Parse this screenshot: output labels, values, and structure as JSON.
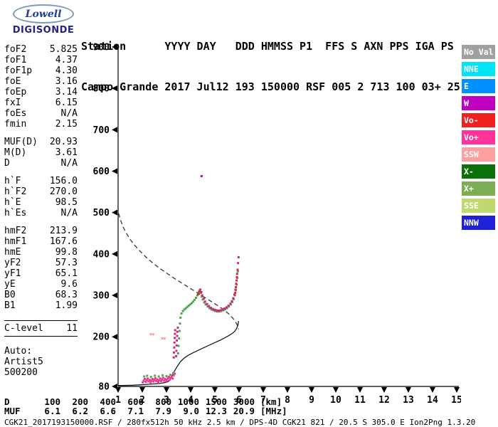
{
  "logo": {
    "brand": "Lowell",
    "product": "DIGISONDE"
  },
  "header": {
    "labels_line": "Station      YYYY DAY   DDD HMMSS P1  FFS S AXN PPS IGA PS",
    "values_line": "Campo Grande 2017 Jul12 193 150000 RSF 005 2 713 100 03+ 25"
  },
  "params": [
    {
      "name": "foF2",
      "value": "5.825"
    },
    {
      "name": "foF1",
      "value": "4.37"
    },
    {
      "name": "foF1p",
      "value": "4.30"
    },
    {
      "name": "foE",
      "value": "3.16"
    },
    {
      "name": "foEp",
      "value": "3.14"
    },
    {
      "name": "fxI",
      "value": "6.15"
    },
    {
      "name": "foEs",
      "value": "N/A"
    },
    {
      "name": "fmin",
      "value": "2.15"
    },
    {
      "gap": true
    },
    {
      "name": "MUF(D)",
      "value": "20.93"
    },
    {
      "name": "M(D)",
      "value": "3.61"
    },
    {
      "name": "D",
      "value": "N/A"
    },
    {
      "gap": true
    },
    {
      "name": "h`F",
      "value": "156.0"
    },
    {
      "name": "h`F2",
      "value": "270.0"
    },
    {
      "name": "h`E",
      "value": "98.5"
    },
    {
      "name": "h`Es",
      "value": "N/A"
    },
    {
      "gap": true
    },
    {
      "name": "hmF2",
      "value": "213.9"
    },
    {
      "name": "hmF1",
      "value": "167.6"
    },
    {
      "name": "hmE",
      "value": "99.8"
    },
    {
      "name": "yF2",
      "value": "57.3"
    },
    {
      "name": "yF1",
      "value": "65.1"
    },
    {
      "name": "yE",
      "value": "9.6"
    },
    {
      "name": "B0",
      "value": "68.3"
    },
    {
      "name": "B1",
      "value": "1.99"
    },
    {
      "gap": true
    },
    {
      "rule": true
    },
    {
      "name": "C-level",
      "value": "11"
    },
    {
      "rule": true
    },
    {
      "gap": true
    },
    {
      "text": "Auto:"
    },
    {
      "text": "Artist5"
    },
    {
      "text": "500200"
    }
  ],
  "legend": {
    "items": [
      {
        "label": "No Val",
        "color": "#A0A0A0"
      },
      {
        "label": "NNE",
        "color": "#00E5F5"
      },
      {
        "label": "E",
        "color": "#0090FF"
      },
      {
        "label": "W",
        "color": "#C000C0"
      },
      {
        "label": "Vo-",
        "color": "#EE2020"
      },
      {
        "label": "Vo+",
        "color": "#FF3399"
      },
      {
        "label": "SSW",
        "color": "#FFA0A0"
      },
      {
        "label": "X-",
        "color": "#0A700A"
      },
      {
        "label": "X+",
        "color": "#7DAE54"
      },
      {
        "label": "SSE",
        "color": "#BFD96E"
      },
      {
        "label": "NNW",
        "color": "#2020D8"
      }
    ]
  },
  "chart_data": {
    "type": "scatter",
    "title": "Digisonde ionogram, Campo Grande 2017 Jul12 193 150000",
    "x_unit": "MHz",
    "y_unit": "km",
    "x_range": [
      1,
      15
    ],
    "y_range": [
      80,
      900
    ],
    "x_ticks": [
      1,
      2,
      3,
      4,
      5,
      6,
      7,
      8,
      9,
      10,
      11,
      12,
      13,
      14,
      15
    ],
    "y_ticks": [
      80,
      200,
      300,
      400,
      500,
      600,
      700,
      800,
      900
    ],
    "grid": false,
    "legend_position": "right",
    "series": [
      {
        "name": "E-region-echoes-pink",
        "color": "#E8388F",
        "points": [
          [
            2.02,
            90
          ],
          [
            2.06,
            94
          ],
          [
            2.1,
            98
          ],
          [
            2.14,
            91
          ],
          [
            2.18,
            95
          ],
          [
            2.22,
            99
          ],
          [
            2.26,
            92
          ],
          [
            2.3,
            96
          ],
          [
            2.34,
            90
          ],
          [
            2.38,
            94
          ],
          [
            2.42,
            98
          ],
          [
            2.46,
            92
          ],
          [
            2.5,
            96
          ],
          [
            2.54,
            100
          ],
          [
            2.58,
            93
          ],
          [
            2.62,
            97
          ],
          [
            2.66,
            91
          ],
          [
            2.7,
            95
          ],
          [
            2.74,
            99
          ],
          [
            2.78,
            93
          ],
          [
            2.82,
            97
          ],
          [
            2.86,
            101
          ],
          [
            2.9,
            94
          ],
          [
            2.94,
            98
          ],
          [
            2.98,
            92
          ],
          [
            3.02,
            96
          ],
          [
            3.06,
            100
          ],
          [
            3.1,
            103
          ],
          [
            3.14,
            97
          ],
          [
            3.18,
            101
          ],
          [
            3.22,
            105
          ],
          [
            3.26,
            99
          ],
          [
            3.3,
            107
          ],
          [
            3.34,
            111
          ]
        ]
      },
      {
        "name": "E-region-echoes-green",
        "color": "#59A84B",
        "points": [
          [
            2.08,
            104
          ],
          [
            2.2,
            106
          ],
          [
            2.36,
            103
          ],
          [
            2.52,
            106
          ],
          [
            2.68,
            104
          ],
          [
            2.84,
            107
          ],
          [
            3.0,
            105
          ],
          [
            3.16,
            108
          ],
          [
            3.28,
            112
          ]
        ]
      },
      {
        "name": "F1-spread-magenta",
        "color": "#D02878",
        "points": [
          [
            3.3,
            150
          ],
          [
            3.31,
            162
          ],
          [
            3.32,
            174
          ],
          [
            3.33,
            186
          ],
          [
            3.34,
            197
          ],
          [
            3.35,
            207
          ],
          [
            3.36,
            216
          ],
          [
            3.4,
            153
          ],
          [
            3.41,
            166
          ],
          [
            3.42,
            179
          ],
          [
            3.43,
            191
          ],
          [
            3.44,
            202
          ],
          [
            3.45,
            212
          ],
          [
            3.47,
            222
          ]
        ]
      },
      {
        "name": "F-trace-green",
        "color": "#4FA24F",
        "points": [
          [
            3.48,
            160
          ],
          [
            3.5,
            178
          ],
          [
            3.52,
            196
          ],
          [
            3.54,
            214
          ],
          [
            3.56,
            232
          ],
          [
            3.58,
            246
          ],
          [
            3.62,
            256
          ],
          [
            3.68,
            262
          ],
          [
            3.74,
            266
          ],
          [
            3.8,
            269
          ],
          [
            3.86,
            272
          ],
          [
            3.92,
            275
          ],
          [
            3.98,
            278
          ],
          [
            4.04,
            281
          ],
          [
            4.1,
            285
          ],
          [
            4.16,
            289
          ],
          [
            4.22,
            294
          ],
          [
            4.28,
            300
          ],
          [
            4.33,
            306
          ],
          [
            4.37,
            312
          ],
          [
            4.42,
            306
          ],
          [
            4.46,
            297
          ],
          [
            4.5,
            290
          ],
          [
            4.56,
            283
          ],
          [
            4.62,
            278
          ],
          [
            4.7,
            273
          ],
          [
            4.78,
            269
          ],
          [
            4.86,
            266
          ],
          [
            4.94,
            264
          ],
          [
            5.02,
            262
          ],
          [
            5.1,
            261
          ],
          [
            5.18,
            261
          ],
          [
            5.26,
            262
          ],
          [
            5.34,
            264
          ],
          [
            5.42,
            266
          ],
          [
            5.5,
            269
          ],
          [
            5.58,
            273
          ],
          [
            5.66,
            278
          ],
          [
            5.72,
            284
          ],
          [
            5.78,
            291
          ],
          [
            5.83,
            300
          ],
          [
            5.87,
            312
          ],
          [
            5.9,
            326
          ],
          [
            5.93,
            342
          ],
          [
            5.95,
            358
          ]
        ]
      },
      {
        "name": "F-trace-magenta",
        "color": "#D02878",
        "points": [
          [
            4.4,
            314
          ],
          [
            4.44,
            308
          ],
          [
            4.48,
            300
          ],
          [
            4.54,
            292
          ],
          [
            4.6,
            285
          ],
          [
            4.68,
            279
          ],
          [
            4.76,
            274
          ],
          [
            4.84,
            270
          ],
          [
            4.92,
            267
          ],
          [
            5.0,
            265
          ],
          [
            5.08,
            264
          ],
          [
            5.16,
            263
          ],
          [
            5.24,
            264
          ],
          [
            5.32,
            266
          ],
          [
            5.4,
            268
          ],
          [
            5.48,
            271
          ],
          [
            5.56,
            275
          ],
          [
            5.64,
            280
          ],
          [
            5.7,
            286
          ],
          [
            5.76,
            293
          ],
          [
            5.81,
            302
          ],
          [
            5.85,
            314
          ],
          [
            5.88,
            328
          ],
          [
            5.91,
            344
          ],
          [
            5.94,
            362
          ],
          [
            5.96,
            378
          ],
          [
            5.98,
            392
          ]
        ]
      },
      {
        "name": "cusp-red",
        "color": "#E02828",
        "points": [
          [
            5.84,
            306
          ],
          [
            5.87,
            320
          ],
          [
            5.9,
            336
          ],
          [
            5.92,
            352
          ],
          [
            4.31,
            303
          ],
          [
            4.35,
            309
          ]
        ]
      },
      {
        "name": "spread-pink",
        "color": "#FFA0A0",
        "points": [
          [
            2.35,
            206
          ],
          [
            2.45,
            206
          ],
          [
            2.82,
            196
          ],
          [
            2.92,
            196
          ]
        ]
      },
      {
        "name": "stray-echo",
        "color": "#C000C0",
        "points": [
          [
            4.45,
            588
          ]
        ]
      }
    ],
    "lines": [
      {
        "name": "profile-line",
        "style": "solid",
        "color": "#1A1A1A",
        "points": [
          [
            1.0,
            82
          ],
          [
            1.6,
            83
          ],
          [
            2.2,
            85
          ],
          [
            2.7,
            87
          ],
          [
            3.0,
            90
          ],
          [
            3.1,
            93
          ],
          [
            3.16,
            99
          ],
          [
            3.22,
            106
          ],
          [
            3.32,
            116
          ],
          [
            3.44,
            128
          ],
          [
            3.58,
            140
          ],
          [
            3.74,
            149
          ],
          [
            3.92,
            156
          ],
          [
            4.12,
            162
          ],
          [
            4.34,
            168
          ],
          [
            4.56,
            174
          ],
          [
            4.78,
            180
          ],
          [
            5.0,
            186
          ],
          [
            5.2,
            191
          ],
          [
            5.4,
            197
          ],
          [
            5.58,
            203
          ],
          [
            5.72,
            208
          ],
          [
            5.82,
            213
          ],
          [
            5.9,
            220
          ],
          [
            5.96,
            229
          ],
          [
            5.98,
            238
          ]
        ]
      },
      {
        "name": "dashed-profile-line",
        "style": "dashed",
        "color": "#333333",
        "points": [
          [
            1.02,
            498
          ],
          [
            1.1,
            482
          ],
          [
            1.2,
            466
          ],
          [
            1.34,
            450
          ],
          [
            1.5,
            435
          ],
          [
            1.7,
            420
          ],
          [
            1.92,
            406
          ],
          [
            2.16,
            392
          ],
          [
            2.42,
            379
          ],
          [
            2.7,
            366
          ],
          [
            3.0,
            354
          ],
          [
            3.3,
            342
          ],
          [
            3.6,
            331
          ],
          [
            3.9,
            320
          ],
          [
            4.2,
            309
          ],
          [
            4.5,
            298
          ],
          [
            4.8,
            287
          ],
          [
            5.1,
            276
          ],
          [
            5.38,
            265
          ],
          [
            5.62,
            253
          ],
          [
            5.8,
            241
          ],
          [
            5.92,
            229
          ],
          [
            5.98,
            218
          ]
        ]
      }
    ]
  },
  "footer": {
    "d_row": {
      "label": "D",
      "values": [
        "100",
        "200",
        "400",
        "600",
        "800",
        "1000",
        "1500",
        "3000"
      ],
      "unit": "[km]"
    },
    "muf_row": {
      "label": "MUF",
      "values": [
        "6.1",
        "6.2",
        "6.6",
        "7.1",
        "7.9",
        "9.0",
        "12.3",
        "20.9"
      ],
      "unit": "[MHz]"
    },
    "file_line": "CGK21_2017193150000.RSF / 280fx512h 50 kHz 2.5 km / DPS-4D CGK21 821 / 20.5 S 305.0 E Ion2Png 1.3.20"
  }
}
